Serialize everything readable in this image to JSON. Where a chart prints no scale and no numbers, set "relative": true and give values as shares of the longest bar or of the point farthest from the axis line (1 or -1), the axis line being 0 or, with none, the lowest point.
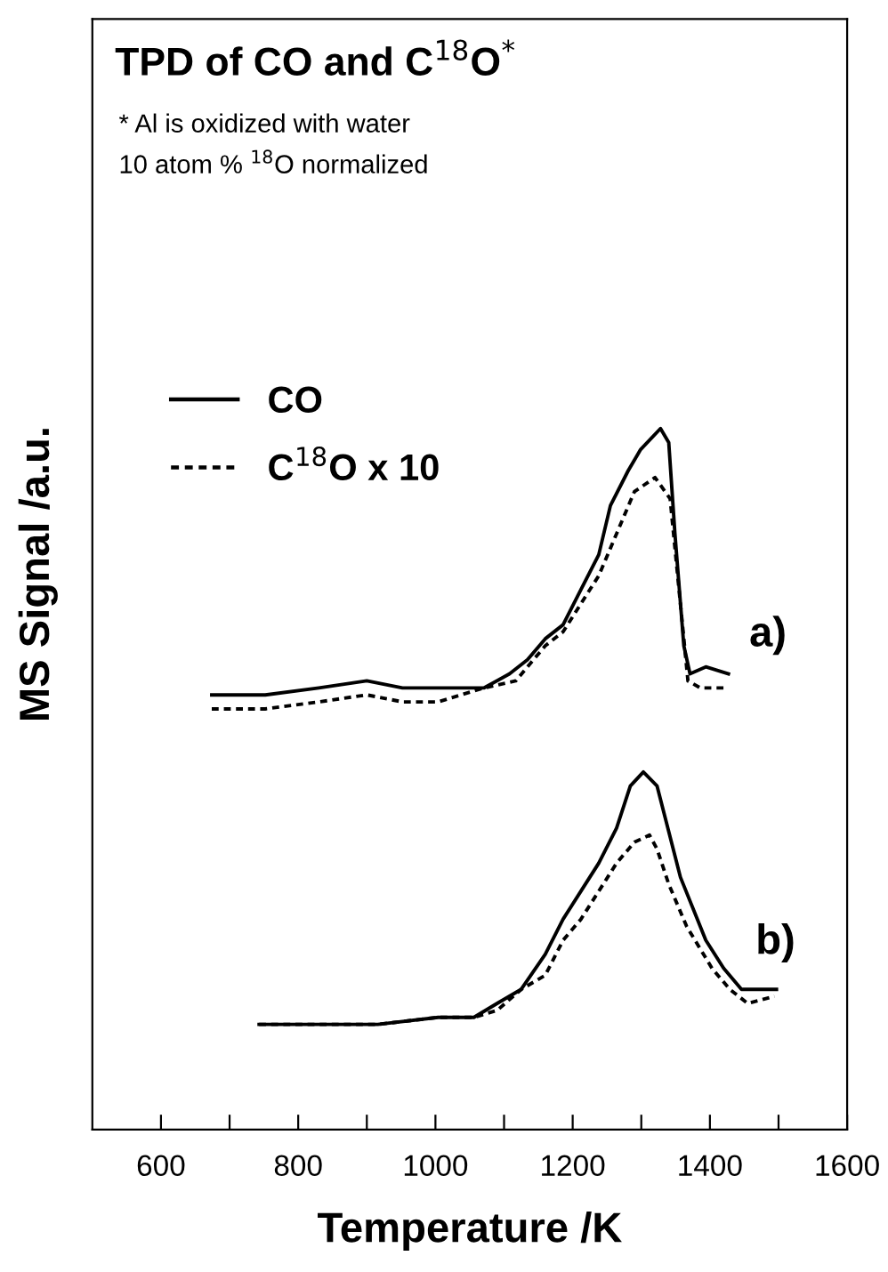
{
  "chart_data": {
    "type": "line",
    "title": "TPD of CO and C$^{18}$O$^{*}$",
    "subtitle": "* Al is oxidized with water\n10 atom % $^{18}$O normalized",
    "xlabel": "Temperature /K",
    "ylabel": "MS Signal /a.u.",
    "relative": true,
    "xlim": [
      500,
      1600
    ],
    "xticks": [
      600,
      {
        "value": 700,
        "label": null
      },
      800,
      {
        "value": 900,
        "label": null
      },
      1000,
      {
        "value": 1100,
        "label": null
      },
      1200,
      {
        "value": 1300,
        "label": null
      },
      1400,
      {
        "value": 1500,
        "label": null
      },
      1600
    ],
    "tick_labels": "x",
    "grid": false,
    "legend": "top left",
    "marker": "none",
    "series": [
      {
        "name": "CO",
        "color": "#000000",
        "line_style": "solid",
        "x": [
          674,
          752,
          830,
          900,
          952,
          986,
          1030,
          1071,
          1108,
          1134,
          1160,
          1186,
          1212,
          1238,
          1255,
          1281,
          1299,
          1328,
          1340,
          1349,
          1362,
          1371,
          1394,
          1427
        ],
        "values": [
          0.62,
          0.62,
          0.63,
          0.64,
          0.63,
          0.63,
          0.63,
          0.63,
          0.65,
          0.67,
          0.7,
          0.72,
          0.77,
          0.82,
          0.89,
          0.94,
          0.97,
          1.0,
          0.98,
          0.85,
          0.69,
          0.65,
          0.66,
          0.65
        ]
      },
      {
        "name": "C$^{18}$O x 10",
        "color": "#000000",
        "line_style": "dashed",
        "x": [
          674,
          752,
          830,
          900,
          952,
          1004,
          1071,
          1117,
          1160,
          1186,
          1212,
          1238,
          1264,
          1290,
          1320,
          1342,
          1355,
          1368,
          1386,
          1427
        ],
        "values": [
          0.6,
          0.6,
          0.61,
          0.62,
          0.61,
          0.61,
          0.63,
          0.64,
          0.69,
          0.71,
          0.75,
          0.79,
          0.85,
          0.91,
          0.93,
          0.9,
          0.77,
          0.64,
          0.63,
          0.63
        ]
      },
      {
        "color": "#000000",
        "line_style": "solid",
        "x": [
          743,
          830,
          916,
          1004,
          1056,
          1090,
          1125,
          1160,
          1186,
          1212,
          1238,
          1264,
          1284,
          1303,
          1323,
          1357,
          1394,
          1420,
          1446,
          1471,
          1497
        ],
        "values": [
          0.15,
          0.15,
          0.15,
          0.16,
          0.16,
          0.18,
          0.2,
          0.25,
          0.3,
          0.34,
          0.38,
          0.43,
          0.49,
          0.51,
          0.49,
          0.36,
          0.27,
          0.23,
          0.2,
          0.2,
          0.2
        ]
      },
      {
        "color": "#000000",
        "line_style": "dashed",
        "x": [
          743,
          830,
          916,
          1004,
          1056,
          1090,
          1125,
          1160,
          1186,
          1212,
          1238,
          1264,
          1290,
          1312,
          1323,
          1340,
          1366,
          1403,
          1429,
          1455,
          1494
        ],
        "values": [
          0.15,
          0.15,
          0.15,
          0.16,
          0.16,
          0.17,
          0.2,
          0.22,
          0.27,
          0.3,
          0.34,
          0.38,
          0.41,
          0.42,
          0.4,
          0.35,
          0.29,
          0.23,
          0.2,
          0.18,
          0.19
        ]
      }
    ],
    "annotations": [
      "a)",
      "b)"
    ]
  }
}
